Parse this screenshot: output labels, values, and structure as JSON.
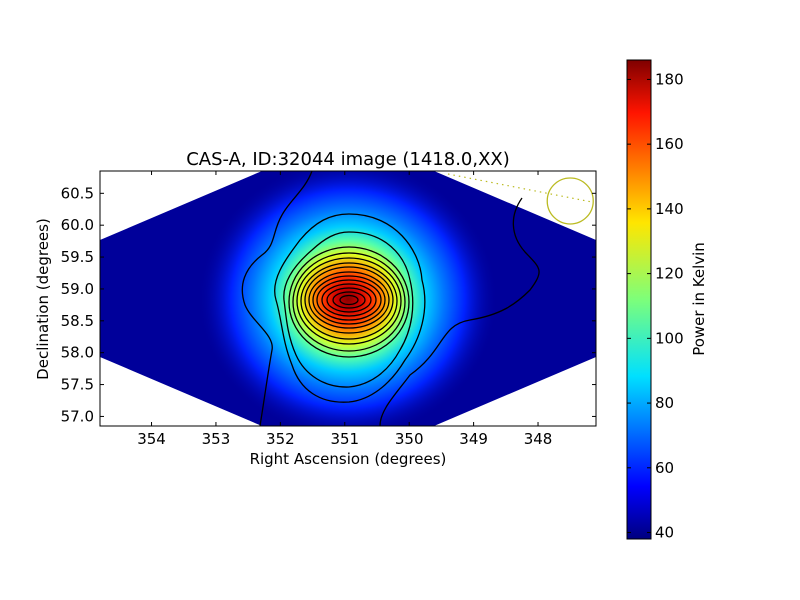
{
  "chart_data": {
    "type": "heatmap",
    "title": "CAS-A, ID:32044 image (1418.0,XX)",
    "xlabel": "Right Ascension (degrees)",
    "ylabel": "Declination (degrees)",
    "xlim": [
      354.8,
      347.1
    ],
    "ylim": [
      56.85,
      60.85
    ],
    "x_ticks": [
      354,
      353,
      352,
      351,
      350,
      349,
      348
    ],
    "y_ticks": [
      57.0,
      57.5,
      58.0,
      58.5,
      59.0,
      59.5,
      60.0,
      60.5
    ],
    "x_tick_labels": [
      "354",
      "353",
      "352",
      "351",
      "350",
      "349",
      "348"
    ],
    "y_tick_labels": [
      "57.0",
      "57.5",
      "58.0",
      "58.5",
      "59.0",
      "59.5",
      "60.0",
      "60.5"
    ],
    "source_peak": {
      "ra": 350.85,
      "dec": 58.82,
      "value": 185
    },
    "background_level": 38,
    "colormap": "jet",
    "colorbar": {
      "label": "Power in Kelvin",
      "vmin": 38,
      "vmax": 186,
      "ticks": [
        40,
        60,
        80,
        100,
        120,
        140,
        160,
        180
      ],
      "tick_labels": [
        "40",
        "60",
        "80",
        "100",
        "120",
        "140",
        "160",
        "180"
      ]
    },
    "annotation": {
      "shape": "circle",
      "ra": 347.5,
      "dec": 60.38,
      "radius_deg": 0.35,
      "color": "#bbbb22"
    },
    "grid": false
  }
}
